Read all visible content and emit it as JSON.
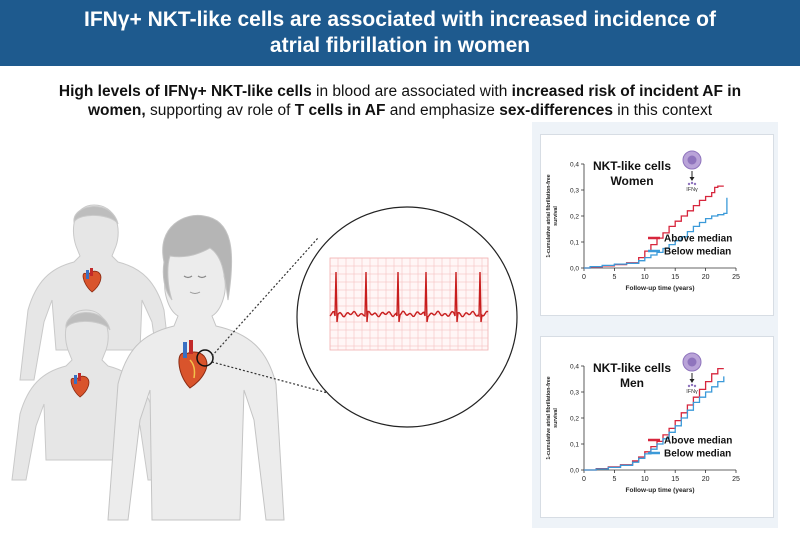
{
  "banner": {
    "title": "IFNγ+ NKT-like cells are associated with increased incidence of atrial fibrillation in women",
    "color": "#1e5a8e"
  },
  "subtitle": {
    "b1": "High levels of IFNγ+ NKT-like cells",
    "t1": " in blood are associated with ",
    "b2": "increased risk of incident AF in women,",
    "t2": " supporting av role of ",
    "b3": "T cells in AF",
    "t3": " and emphasize ",
    "b4": "sex-differences",
    "t4": " in this context"
  },
  "colors": {
    "above": "#d7263d",
    "below": "#3b9ad9",
    "ecg": "#c81e1e",
    "grid": "#f4b8b8"
  },
  "chart_data": [
    {
      "type": "line",
      "title": "NKT-like cells Women",
      "title_line1": "NKT-like cells",
      "title_line2": "Women",
      "cell_label": "IFNγ",
      "xlabel": "Follow-up time (years)",
      "ylabel_line1": "1-cumulative atrial fibrillation-free",
      "ylabel_line2": "survival",
      "xticks": [
        "0",
        "5",
        "10",
        "15",
        "20",
        "25"
      ],
      "yticks": [
        "0,0",
        "0,1",
        "0,2",
        "0,3",
        "0,4"
      ],
      "xlim": [
        0,
        25
      ],
      "ylim": [
        0,
        0.4
      ],
      "legend": [
        "Above median",
        "Below median"
      ],
      "series": [
        {
          "name": "Above median",
          "x": [
            0,
            1,
            3,
            5,
            7,
            9,
            10,
            11,
            12,
            13,
            14,
            15,
            16,
            17,
            18,
            19,
            20,
            21,
            21.5,
            22,
            23
          ],
          "y": [
            0,
            0.003,
            0.008,
            0.013,
            0.02,
            0.04,
            0.065,
            0.09,
            0.115,
            0.135,
            0.16,
            0.18,
            0.2,
            0.22,
            0.24,
            0.26,
            0.275,
            0.29,
            0.31,
            0.315,
            0.315
          ]
        },
        {
          "name": "Below median",
          "x": [
            0,
            1,
            3,
            5,
            7,
            9,
            10,
            11,
            12,
            13,
            14,
            15,
            16,
            17,
            18,
            19,
            20,
            21,
            22,
            23,
            23.5
          ],
          "y": [
            0,
            0.005,
            0.01,
            0.015,
            0.018,
            0.028,
            0.04,
            0.05,
            0.06,
            0.075,
            0.09,
            0.105,
            0.12,
            0.14,
            0.16,
            0.175,
            0.19,
            0.2,
            0.205,
            0.21,
            0.27
          ]
        }
      ]
    },
    {
      "type": "line",
      "title": "NKT-like cells Men",
      "title_line1": "NKT-like cells",
      "title_line2": "Men",
      "cell_label": "IFNγ",
      "xlabel": "Follow-up time (years)",
      "ylabel_line1": "1-cumulative atrial fibrillation-free",
      "ylabel_line2": "survival",
      "xticks": [
        "0",
        "5",
        "10",
        "15",
        "20",
        "25"
      ],
      "yticks": [
        "0,0",
        "0,1",
        "0,2",
        "0,3",
        "0,4"
      ],
      "xlim": [
        0,
        25
      ],
      "ylim": [
        0,
        0.4
      ],
      "legend": [
        "Above median",
        "Below median"
      ],
      "series": [
        {
          "name": "Above median",
          "x": [
            0,
            2,
            4,
            6,
            8,
            9,
            10,
            11,
            12,
            13,
            14,
            15,
            16,
            17,
            18,
            19,
            20,
            21,
            22,
            23
          ],
          "y": [
            0,
            0.005,
            0.012,
            0.02,
            0.035,
            0.05,
            0.07,
            0.09,
            0.11,
            0.135,
            0.16,
            0.19,
            0.22,
            0.25,
            0.28,
            0.31,
            0.34,
            0.37,
            0.39,
            0.39
          ]
        },
        {
          "name": "Below median",
          "x": [
            0,
            2,
            4,
            6,
            8,
            9,
            10,
            11,
            12,
            13,
            14,
            15,
            16,
            17,
            18,
            19,
            20,
            21,
            22,
            23
          ],
          "y": [
            0,
            0.004,
            0.01,
            0.018,
            0.03,
            0.045,
            0.062,
            0.08,
            0.1,
            0.12,
            0.145,
            0.17,
            0.2,
            0.23,
            0.26,
            0.28,
            0.3,
            0.32,
            0.34,
            0.36
          ]
        }
      ]
    }
  ]
}
